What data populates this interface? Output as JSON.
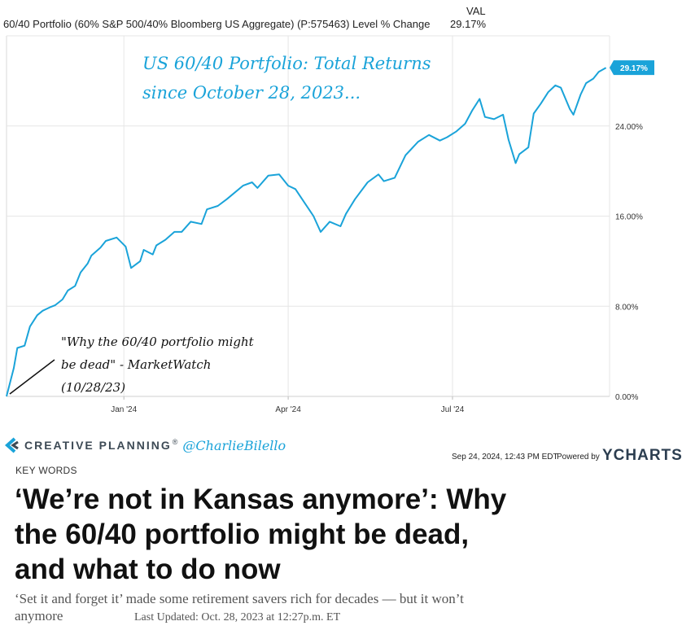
{
  "header": {
    "series_label": "60/40 Portfolio (60% S&P 500/40% Bloomberg US Aggregate) (P:575463) Level % Change",
    "val_heading": "VAL",
    "val_value": "29.17%"
  },
  "chart_data": {
    "type": "line",
    "series": [
      {
        "x": [
          "2023-10-28",
          "2023-11-01",
          "2023-11-03",
          "2023-11-07",
          "2023-11-10",
          "2023-11-14",
          "2023-11-17",
          "2023-11-21",
          "2023-11-24",
          "2023-11-28",
          "2023-12-01",
          "2023-12-05",
          "2023-12-08",
          "2023-12-12",
          "2023-12-14",
          "2023-12-19",
          "2023-12-22",
          "2023-12-28",
          "2024-01-02",
          "2024-01-05",
          "2024-01-10",
          "2024-01-12",
          "2024-01-17",
          "2024-01-19",
          "2024-01-24",
          "2024-01-29",
          "2024-02-02",
          "2024-02-07",
          "2024-02-13",
          "2024-02-16",
          "2024-02-22",
          "2024-02-27",
          "2024-03-01",
          "2024-03-07",
          "2024-03-12",
          "2024-03-15",
          "2024-03-21",
          "2024-03-27",
          "2024-04-01",
          "2024-04-05",
          "2024-04-10",
          "2024-04-15",
          "2024-04-19",
          "2024-04-24",
          "2024-04-30",
          "2024-05-03",
          "2024-05-08",
          "2024-05-15",
          "2024-05-21",
          "2024-05-24",
          "2024-05-30",
          "2024-06-05",
          "2024-06-12",
          "2024-06-18",
          "2024-06-24",
          "2024-06-28",
          "2024-07-03",
          "2024-07-08",
          "2024-07-12",
          "2024-07-16",
          "2024-07-19",
          "2024-07-24",
          "2024-07-29",
          "2024-08-01",
          "2024-08-05",
          "2024-08-07",
          "2024-08-12",
          "2024-08-15",
          "2024-08-19",
          "2024-08-23",
          "2024-08-27",
          "2024-08-30",
          "2024-09-04",
          "2024-09-06",
          "2024-09-10",
          "2024-09-13",
          "2024-09-17",
          "2024-09-20",
          "2024-09-24"
        ],
        "values": [
          0.0,
          2.5,
          4.3,
          4.5,
          6.2,
          7.2,
          7.6,
          7.9,
          8.1,
          8.6,
          9.4,
          9.8,
          11.0,
          11.8,
          12.5,
          13.2,
          13.8,
          14.1,
          13.3,
          11.4,
          12.0,
          13.0,
          12.6,
          13.4,
          13.9,
          14.6,
          14.6,
          15.5,
          15.3,
          16.6,
          16.9,
          17.5,
          17.9,
          18.7,
          19.0,
          18.5,
          19.6,
          19.7,
          18.7,
          18.4,
          17.2,
          16.0,
          14.6,
          15.5,
          15.1,
          16.2,
          17.5,
          19.0,
          19.7,
          19.1,
          19.4,
          21.4,
          22.6,
          23.2,
          22.7,
          23.0,
          23.5,
          24.2,
          25.4,
          26.4,
          24.8,
          24.6,
          25.0,
          22.8,
          20.7,
          21.5,
          22.1,
          25.1,
          26.0,
          27.0,
          27.6,
          27.4,
          25.5,
          25.0,
          26.8,
          27.8,
          28.2,
          28.8,
          29.17
        ]
      }
    ],
    "x_ticks": [
      "Jan '24",
      "Apr '24",
      "Jul '24"
    ],
    "y_ticks": [
      "0.00%",
      "8.00%",
      "16.00%",
      "24.00%"
    ],
    "ylim": [
      0,
      32
    ],
    "end_label": "29.17%",
    "line_color": "#1aa3d9",
    "grid": true
  },
  "annotations": {
    "title_line1": "US 60/40 Portfolio: Total Returns",
    "title_line2": "since October 28, 2023...",
    "note_line1": "\"Why the 60/40 portfolio might",
    "note_line2": "be dead\" - MarketWatch",
    "note_line3": "(10/28/23)"
  },
  "branding": {
    "company": "CREATIVE PLANNING",
    "company_mark": "®",
    "handle": "@CharlieBilello",
    "timestamp": "Sep 24, 2024, 12:43 PM EDT",
    "powered_by": "Powered by",
    "ycharts": "YCHARTS",
    "brand_color": "#1aa3d9"
  },
  "article": {
    "kicker": "KEY WORDS",
    "headline": "‘We’re not in Kansas anymore’: Why the 60/40 portfolio might be dead, and what to do now",
    "dek_main": "‘Set it and forget it’ made some retirement savers rich for decades — but it won’t anymore",
    "updated": "Last Updated: Oct. 28, 2023 at 12:27p.m. ET"
  }
}
